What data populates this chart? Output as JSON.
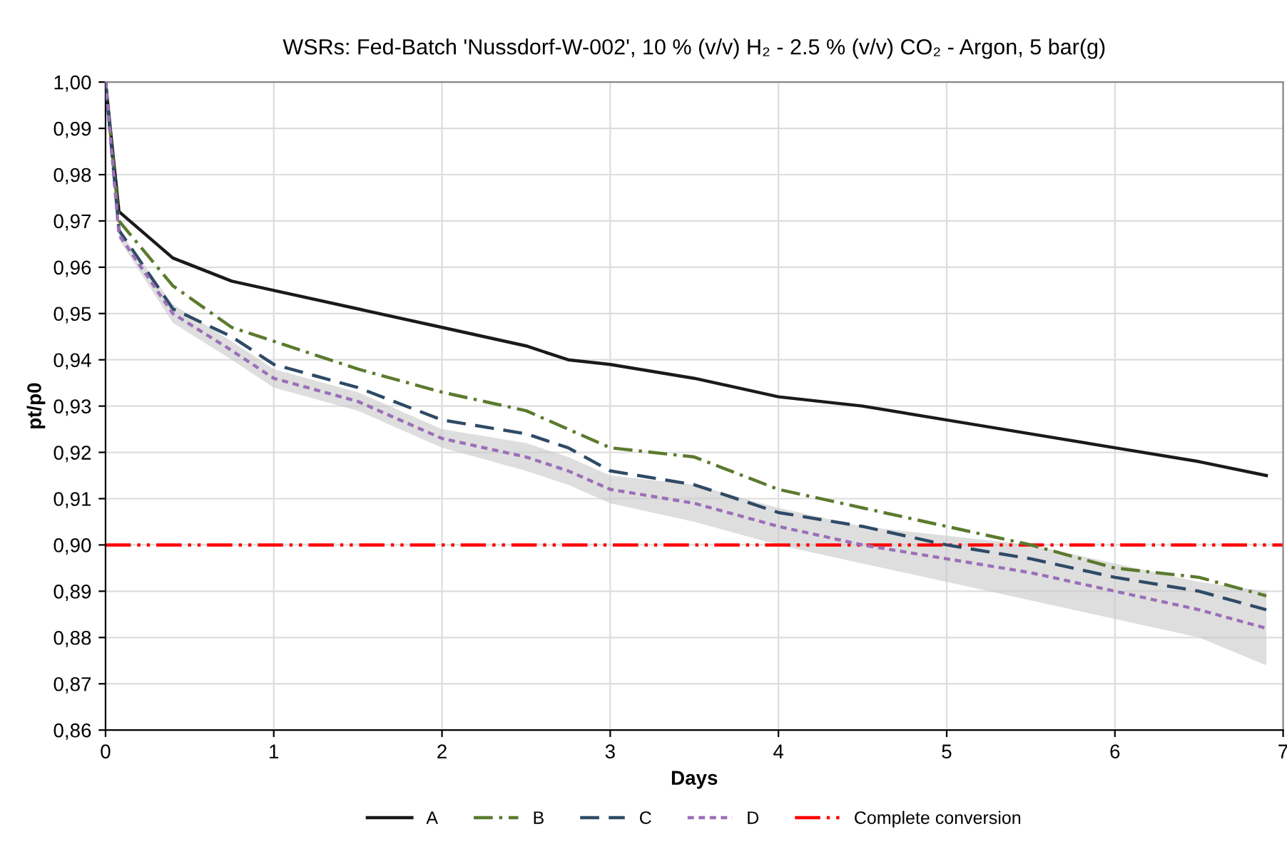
{
  "chart_data": {
    "type": "line",
    "title": "WSRs: Fed-Batch 'Nussdorf-W-002', 10 % (v/v) H₂ - 2.5 % (v/v) CO₂ - Argon, 5 bar(g)",
    "xlabel": "Days",
    "ylabel": "pt/p0",
    "x": [
      0,
      0.08,
      0.4,
      0.75,
      1,
      1.5,
      2,
      2.5,
      2.75,
      3,
      3.5,
      4,
      4.5,
      5,
      5.5,
      6,
      6.5,
      6.9
    ],
    "series": [
      {
        "name": "A",
        "color": "#1a1a1a",
        "line_style": "solid",
        "values": [
          1.0,
          0.972,
          0.962,
          0.957,
          0.955,
          0.951,
          0.947,
          0.943,
          0.94,
          0.939,
          0.936,
          0.932,
          0.93,
          0.927,
          0.924,
          0.921,
          0.918,
          0.915
        ]
      },
      {
        "name": "B",
        "color": "#5b7a2e",
        "line_style": "dashdot",
        "values": [
          1.0,
          0.97,
          0.956,
          0.947,
          0.944,
          0.938,
          0.933,
          0.929,
          0.925,
          0.921,
          0.919,
          0.912,
          0.908,
          0.904,
          0.9,
          0.895,
          0.893,
          0.889
        ]
      },
      {
        "name": "C",
        "color": "#2e4a66",
        "line_style": "dashed",
        "values": [
          1.0,
          0.968,
          0.951,
          0.945,
          0.939,
          0.934,
          0.927,
          0.924,
          0.921,
          0.916,
          0.913,
          0.907,
          0.904,
          0.9,
          0.897,
          0.893,
          0.89,
          0.886
        ]
      },
      {
        "name": "D",
        "color": "#9b6fb8",
        "line_style": "dotted",
        "values": [
          1.0,
          0.967,
          0.95,
          0.942,
          0.936,
          0.931,
          0.923,
          0.919,
          0.916,
          0.912,
          0.909,
          0.904,
          0.9,
          0.897,
          0.894,
          0.89,
          0.886,
          0.882
        ],
        "lower": [
          1.0,
          0.966,
          0.948,
          0.94,
          0.934,
          0.929,
          0.921,
          0.916,
          0.913,
          0.909,
          0.905,
          0.9,
          0.896,
          0.892,
          0.888,
          0.884,
          0.88,
          0.874
        ],
        "upper": [
          1.0,
          0.968,
          0.952,
          0.944,
          0.938,
          0.933,
          0.925,
          0.922,
          0.919,
          0.915,
          0.913,
          0.908,
          0.904,
          0.902,
          0.9,
          0.896,
          0.892,
          0.89
        ]
      }
    ],
    "ref_lines": [
      {
        "axis": "y",
        "value": 0.9,
        "label": "Complete conversion",
        "color": "#ff0000",
        "line_style": "dashdotdot"
      }
    ],
    "xlim": [
      0,
      7
    ],
    "xticks": [
      0,
      1,
      2,
      3,
      4,
      5,
      6,
      7
    ],
    "ylim": [
      0.86,
      1.0
    ],
    "yticks": [
      {
        "value": 0.86,
        "label": "0,86"
      },
      {
        "value": 0.87,
        "label": "0,87"
      },
      {
        "value": 0.88,
        "label": "0,88"
      },
      {
        "value": 0.89,
        "label": "0,89"
      },
      {
        "value": 0.9,
        "label": "0,90"
      },
      {
        "value": 0.91,
        "label": "0,91"
      },
      {
        "value": 0.92,
        "label": "0,92"
      },
      {
        "value": 0.93,
        "label": "0,93"
      },
      {
        "value": 0.94,
        "label": "0,94"
      },
      {
        "value": 0.95,
        "label": "0,95"
      },
      {
        "value": 0.96,
        "label": "0,96"
      },
      {
        "value": 0.97,
        "label": "0,97"
      },
      {
        "value": 0.98,
        "label": "0,98"
      },
      {
        "value": 0.99,
        "label": "0,99"
      },
      {
        "value": 1.0,
        "label": "1,00"
      }
    ],
    "grid": true,
    "legend": "bottom",
    "marker": "none"
  }
}
